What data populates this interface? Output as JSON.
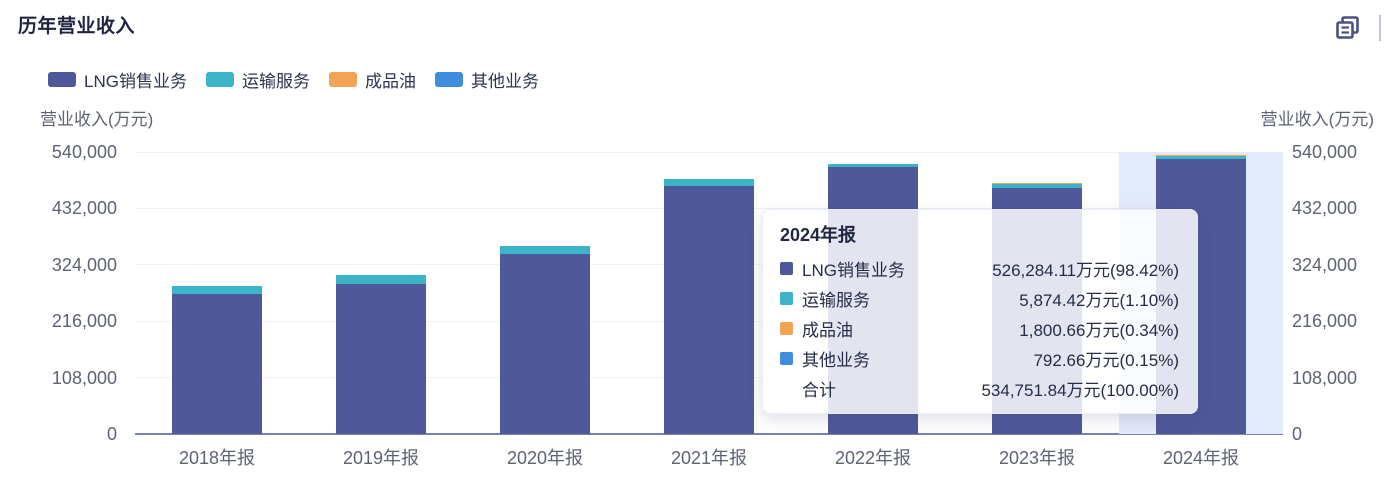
{
  "header": {
    "title": "历年营业收入"
  },
  "toolbox": {
    "icon": "data-view-icon",
    "icon_color": "#4a5280"
  },
  "chart_data": {
    "type": "bar",
    "stacked": true,
    "title": "历年营业收入",
    "categories": [
      "2018年报",
      "2019年报",
      "2020年报",
      "2021年报",
      "2022年报",
      "2023年报",
      "2024年报"
    ],
    "series": [
      {
        "name": "LNG销售业务",
        "color": "#4f5899",
        "values": [
          268100,
          287300,
          344700,
          475000,
          511000,
          471000,
          526284.11
        ]
      },
      {
        "name": "运输服务",
        "color": "#3cb4c8",
        "values": [
          15300,
          17200,
          15300,
          13400,
          5700,
          7000,
          5874.42
        ]
      },
      {
        "name": "成品油",
        "color": "#f2a355",
        "values": [
          0,
          0,
          0,
          0,
          0,
          3500,
          1800.66
        ]
      },
      {
        "name": "其他业务",
        "color": "#3e8edd",
        "values": [
          0,
          0,
          0,
          0,
          0,
          0,
          792.66
        ]
      }
    ],
    "ylabel_left": "营业收入(万元)",
    "ylabel_right": "营业收入(万元)",
    "ylim": [
      0,
      540000
    ],
    "yticks": [
      0,
      108000,
      216000,
      324000,
      432000,
      540000
    ],
    "ytick_labels": [
      "0",
      "108,000",
      "216,000",
      "324,000",
      "432,000",
      "540,000"
    ],
    "grid": true,
    "legend_position": "top",
    "highlighted_category": "2024年报",
    "highlight_band_color": "#e3eafa"
  },
  "tooltip": {
    "title": "2024年报",
    "rows": [
      {
        "swatch": "#4f5899",
        "label": "LNG销售业务",
        "value": "526,284.11万元(98.42%)"
      },
      {
        "swatch": "#3cb4c8",
        "label": "运输服务",
        "value": "5,874.42万元(1.10%)"
      },
      {
        "swatch": "#f2a355",
        "label": "成品油",
        "value": "1,800.66万元(0.34%)"
      },
      {
        "swatch": "#3e8edd",
        "label": "其他业务",
        "value": "792.66万元(0.15%)"
      },
      {
        "swatch": null,
        "label": "合计",
        "value": "534,751.84万元(100.00%)"
      }
    ]
  }
}
